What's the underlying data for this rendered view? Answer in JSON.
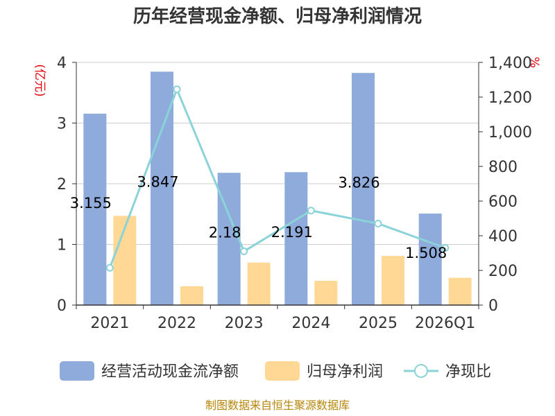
{
  "chart_data": {
    "type": "bar",
    "title": "历年经营现金净额、归母净利润情况",
    "categories": [
      "2021",
      "2022",
      "2023",
      "2024",
      "2025",
      "2026Q1"
    ],
    "series": [
      {
        "name": "经营活动现金流净额",
        "type": "bar",
        "axis": "left",
        "color": "#8eabdb",
        "values": [
          3.155,
          3.847,
          2.18,
          2.191,
          3.826,
          1.508
        ],
        "labels": [
          "3.155",
          "3.847",
          "2.18",
          "2.191",
          "3.826",
          "1.508"
        ]
      },
      {
        "name": "归母净利润",
        "type": "bar",
        "axis": "left",
        "color": "#ffd896",
        "values": [
          1.47,
          0.31,
          0.7,
          0.4,
          0.81,
          0.45
        ]
      },
      {
        "name": "净现比",
        "type": "line",
        "axis": "right",
        "color": "#8ad3d8",
        "values": [
          215,
          1245,
          310,
          545,
          470,
          330
        ]
      }
    ],
    "y_left": {
      "unit": "(亿元)",
      "min": 0,
      "max": 4,
      "ticks": [
        "0",
        "1",
        "2",
        "3",
        "4"
      ]
    },
    "y_right": {
      "unit": "%",
      "min": 0,
      "max": 1400,
      "ticks": [
        "0",
        "200",
        "400",
        "600",
        "800",
        "1,000",
        "1,200",
        "1,400"
      ]
    },
    "grid": true,
    "legend_position": "bottom",
    "source": "制图数据来自恒生聚源数据库"
  }
}
